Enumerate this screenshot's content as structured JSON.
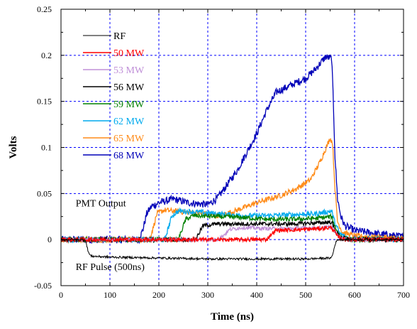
{
  "chart_data": {
    "type": "line",
    "xlabel": "Time (ns)",
    "ylabel": "Volts",
    "xlim": [
      0,
      700
    ],
    "ylim": [
      -0.05,
      0.25
    ],
    "x_ticks": [
      "0",
      "100",
      "200",
      "300",
      "400",
      "500",
      "600",
      "700"
    ],
    "y_ticks": [
      "-0.05",
      "0",
      "0.05",
      "0.1",
      "0.15",
      "0.2",
      "0.25"
    ],
    "grid": "dashed-blue",
    "legend_position": "top-left",
    "annotations": [
      {
        "text": "PMT Output",
        "x": 30,
        "y": 0.036
      },
      {
        "text": "RF Pulse (500ns)",
        "x": 30,
        "y": -0.033
      }
    ],
    "series": [
      {
        "name": "RF",
        "color": "#000000",
        "noise": 0.0012,
        "points": [
          [
            0,
            0
          ],
          [
            50,
            0
          ],
          [
            53,
            -0.008
          ],
          [
            58,
            -0.016
          ],
          [
            62,
            -0.018
          ],
          [
            100,
            -0.019
          ],
          [
            200,
            -0.02
          ],
          [
            300,
            -0.021
          ],
          [
            400,
            -0.021
          ],
          [
            500,
            -0.021
          ],
          [
            552,
            -0.02
          ],
          [
            556,
            -0.015
          ],
          [
            560,
            -0.005
          ],
          [
            565,
            0
          ],
          [
            700,
            0
          ]
        ]
      },
      {
        "name": "50 MW",
        "color": "#ff0000",
        "noise": 0.0022,
        "points": [
          [
            0,
            0
          ],
          [
            290,
            0
          ],
          [
            420,
            0
          ],
          [
            430,
            0.006
          ],
          [
            440,
            0.01
          ],
          [
            500,
            0.011
          ],
          [
            552,
            0.013
          ],
          [
            558,
            0.01
          ],
          [
            565,
            0.003
          ],
          [
            580,
            0
          ],
          [
            700,
            0
          ]
        ]
      },
      {
        "name": "53 MW",
        "color": "#c090d8",
        "noise": 0.002,
        "points": [
          [
            0,
            0
          ],
          [
            320,
            0
          ],
          [
            335,
            0.006
          ],
          [
            345,
            0.011
          ],
          [
            370,
            0.013
          ],
          [
            420,
            0.012
          ],
          [
            470,
            0.012
          ],
          [
            530,
            0.013
          ],
          [
            553,
            0.014
          ],
          [
            560,
            0.008
          ],
          [
            570,
            0.002
          ],
          [
            590,
            0
          ],
          [
            700,
            0
          ]
        ]
      },
      {
        "name": "56 MW",
        "color": "#000000",
        "noise": 0.0022,
        "points": [
          [
            0,
            0
          ],
          [
            275,
            0
          ],
          [
            283,
            0.008
          ],
          [
            290,
            0.015
          ],
          [
            320,
            0.017
          ],
          [
            370,
            0.017
          ],
          [
            420,
            0.017
          ],
          [
            470,
            0.017
          ],
          [
            520,
            0.018
          ],
          [
            553,
            0.019
          ],
          [
            560,
            0.01
          ],
          [
            570,
            0.003
          ],
          [
            590,
            0
          ],
          [
            700,
            0
          ]
        ]
      },
      {
        "name": "59 MW",
        "color": "#008000",
        "noise": 0.0025,
        "points": [
          [
            0,
            0
          ],
          [
            240,
            0
          ],
          [
            248,
            0.012
          ],
          [
            255,
            0.022
          ],
          [
            270,
            0.026
          ],
          [
            320,
            0.025
          ],
          [
            370,
            0.024
          ],
          [
            420,
            0.022
          ],
          [
            470,
            0.022
          ],
          [
            520,
            0.023
          ],
          [
            553,
            0.025
          ],
          [
            560,
            0.014
          ],
          [
            570,
            0.004
          ],
          [
            590,
            0
          ],
          [
            700,
            0
          ]
        ]
      },
      {
        "name": "62 MW",
        "color": "#00aaee",
        "noise": 0.0028,
        "points": [
          [
            0,
            0
          ],
          [
            212,
            0
          ],
          [
            220,
            0.014
          ],
          [
            227,
            0.026
          ],
          [
            240,
            0.031
          ],
          [
            280,
            0.03
          ],
          [
            320,
            0.028
          ],
          [
            370,
            0.026
          ],
          [
            420,
            0.026
          ],
          [
            470,
            0.027
          ],
          [
            520,
            0.028
          ],
          [
            553,
            0.031
          ],
          [
            560,
            0.018
          ],
          [
            570,
            0.006
          ],
          [
            590,
            0.001
          ],
          [
            700,
            0
          ]
        ]
      },
      {
        "name": "65 MW",
        "color": "#ff8c1a",
        "noise": 0.003,
        "points": [
          [
            0,
            0
          ],
          [
            180,
            0
          ],
          [
            188,
            0.012
          ],
          [
            196,
            0.028
          ],
          [
            210,
            0.032
          ],
          [
            250,
            0.03
          ],
          [
            300,
            0.028
          ],
          [
            320,
            0.026
          ],
          [
            350,
            0.03
          ],
          [
            400,
            0.04
          ],
          [
            450,
            0.048
          ],
          [
            480,
            0.055
          ],
          [
            510,
            0.065
          ],
          [
            530,
            0.085
          ],
          [
            550,
            0.11
          ],
          [
            555,
            0.105
          ],
          [
            560,
            0.055
          ],
          [
            565,
            0.02
          ],
          [
            575,
            0.008
          ],
          [
            600,
            0.004
          ],
          [
            700,
            0.001
          ]
        ]
      },
      {
        "name": "68 MW",
        "color": "#0000b8",
        "noise": 0.004,
        "points": [
          [
            0,
            0
          ],
          [
            160,
            0
          ],
          [
            168,
            0.012
          ],
          [
            175,
            0.028
          ],
          [
            185,
            0.036
          ],
          [
            200,
            0.04
          ],
          [
            230,
            0.044
          ],
          [
            260,
            0.04
          ],
          [
            300,
            0.038
          ],
          [
            320,
            0.045
          ],
          [
            340,
            0.06
          ],
          [
            360,
            0.075
          ],
          [
            380,
            0.095
          ],
          [
            400,
            0.115
          ],
          [
            420,
            0.14
          ],
          [
            440,
            0.16
          ],
          [
            460,
            0.165
          ],
          [
            480,
            0.17
          ],
          [
            500,
            0.175
          ],
          [
            520,
            0.185
          ],
          [
            540,
            0.198
          ],
          [
            553,
            0.197
          ],
          [
            556,
            0.16
          ],
          [
            560,
            0.09
          ],
          [
            565,
            0.045
          ],
          [
            572,
            0.025
          ],
          [
            580,
            0.015
          ],
          [
            600,
            0.01
          ],
          [
            650,
            0.006
          ],
          [
            700,
            0.003
          ]
        ]
      }
    ]
  }
}
